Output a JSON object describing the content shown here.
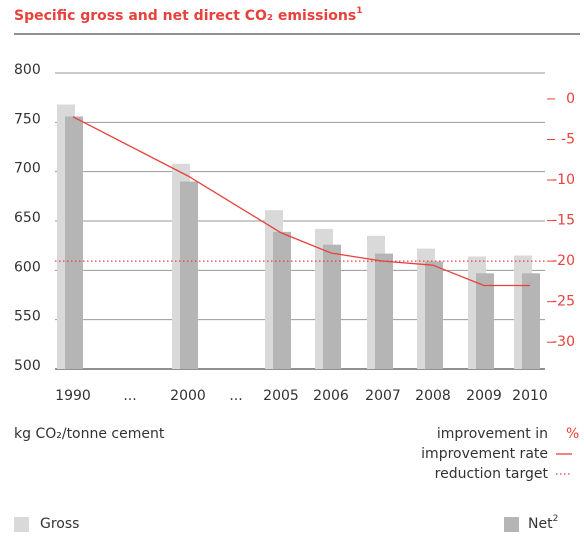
{
  "chart_data": {
    "type": "bar-line",
    "title": "Specific gross and net direct CO₂ emissions",
    "title_note": "1",
    "categories": [
      "1990",
      "...",
      "2000",
      "...",
      "2005",
      "2006",
      "2007",
      "2008",
      "2009",
      "2010"
    ],
    "series": [
      {
        "name": "Gross",
        "color": "#d9d9d9",
        "values": [
          768,
          null,
          708,
          null,
          661,
          642,
          635,
          622,
          614,
          615
        ]
      },
      {
        "name": "Net",
        "name_note": "2",
        "color": "#b5b5b5",
        "values": [
          756,
          null,
          690,
          null,
          639,
          626,
          617,
          609,
          597,
          597
        ]
      },
      {
        "name": "improvement rate",
        "color": "#e8413c",
        "axis": "y2",
        "values": [
          -2.2,
          null,
          -9.5,
          null,
          -16.5,
          -19,
          -20,
          -20.5,
          -23,
          -23
        ]
      }
    ],
    "reduction_target": {
      "name": "reduction target",
      "value": -20,
      "color": "#e8413c"
    },
    "ylim": [
      500,
      800
    ],
    "yticks": [
      500,
      550,
      600,
      650,
      700,
      750,
      800
    ],
    "y2lim": [
      -33.3,
      3.2
    ],
    "y2ticks": [
      0,
      -5,
      -10,
      -15,
      -20,
      -25,
      -30
    ],
    "y_label": "kg CO₂/tonne cement",
    "y2_label": "improvement in",
    "y2_unit": "%",
    "grid": true
  }
}
